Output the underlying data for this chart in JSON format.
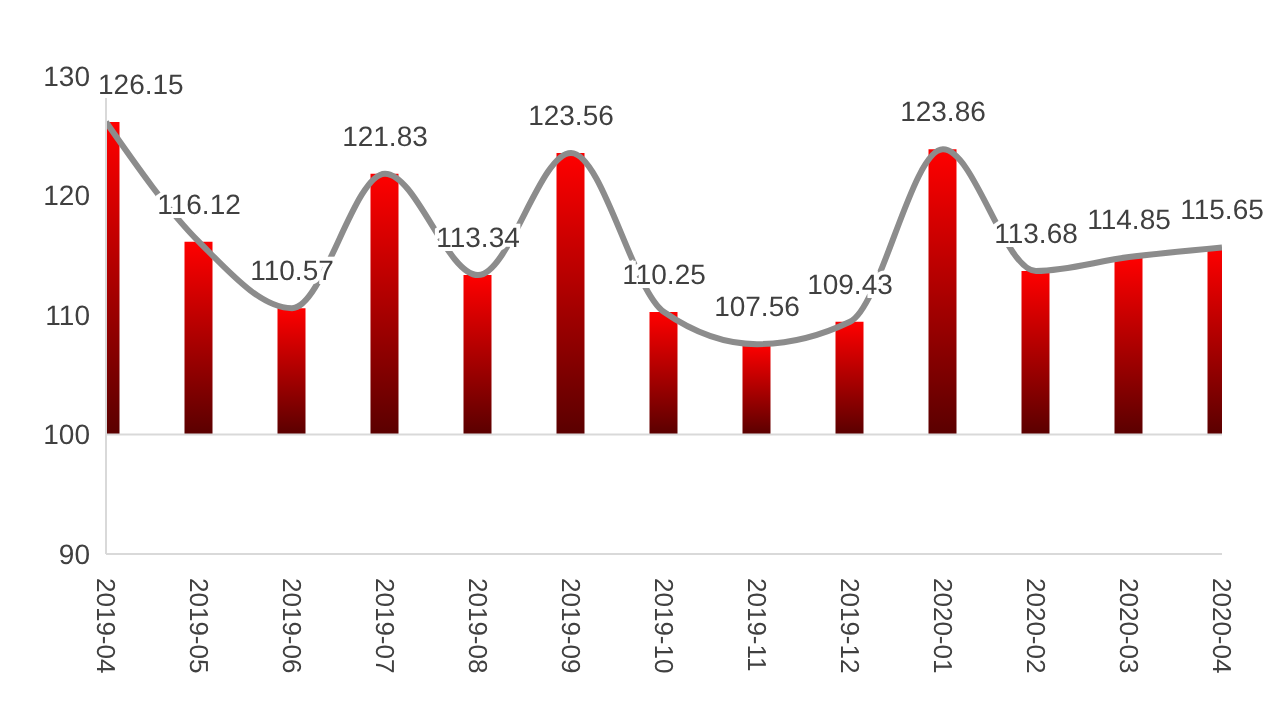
{
  "chart_data": {
    "type": "bar",
    "categories": [
      "2019-04",
      "2019-05",
      "2019-06",
      "2019-07",
      "2019-08",
      "2019-09",
      "2019-10",
      "2019-11",
      "2019-12",
      "2020-01",
      "2020-02",
      "2020-03",
      "2020-04"
    ],
    "series": [
      {
        "color": "#ff0000",
        "base": [
          100,
          100,
          100,
          100,
          100,
          100,
          100,
          100,
          100,
          100,
          100,
          100,
          100
        ],
        "values": [
          26.15,
          16.12,
          10.57,
          21.83,
          13.34,
          23.56,
          10.25,
          7.56,
          9.43,
          23.86,
          13.68,
          14.85,
          15.65
        ]
      },
      {
        "type": "line",
        "color": "#8c8c8c",
        "values": [
          126.15,
          116.12,
          110.57,
          121.83,
          113.34,
          123.56,
          110.25,
          107.56,
          109.43,
          123.86,
          113.68,
          114.85,
          115.65
        ],
        "value_labels": [
          "126.15",
          "116.12",
          "110.57",
          "121.83",
          "113.34",
          "123.56",
          "110.25",
          "107.56",
          "109.43",
          "123.86",
          "113.68",
          "114.85",
          "115.65"
        ]
      }
    ],
    "ylim": [
      90,
      130
    ],
    "yticks": [
      90,
      100,
      110,
      120,
      130
    ],
    "grid": false,
    "legend": false,
    "marker": "none",
    "line_style": "solid",
    "ref_lines": [
      {
        "axis": "y",
        "value": 100,
        "color": "#d9d9d9"
      }
    ]
  }
}
